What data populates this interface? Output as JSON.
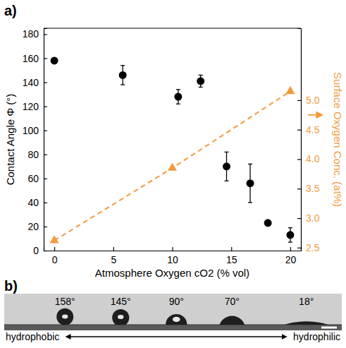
{
  "chart_data": {
    "type": "scatter",
    "x_label": "Atmosphere Oxygen cO2 (% vol)",
    "y_label": "Contact Angle Φ (°)",
    "y2_label": "Surface Oxygen Conc. (at%)",
    "xlim": [
      -0.9,
      20.9
    ],
    "xticks": [
      0,
      5,
      10,
      15,
      20
    ],
    "ylim": [
      0,
      185
    ],
    "yticks": [
      0,
      20,
      40,
      60,
      80,
      100,
      120,
      140,
      160,
      180
    ],
    "y2lim": [
      2.45,
      6.22
    ],
    "y2ticks": [
      {
        "value": 2.5,
        "label": "2.5"
      },
      {
        "value": 3,
        "label": "3.0"
      },
      {
        "value": 3.5,
        "label": "3.5"
      },
      {
        "value": 4,
        "label": "4.0"
      },
      {
        "value": 4.5,
        "label": "4.5"
      },
      {
        "value": 5,
        "label": "5.0"
      }
    ],
    "series": [
      {
        "type": "scatter",
        "color": "#000000",
        "marker": "circle",
        "x": [
          0,
          5.8,
          10.5,
          12.4,
          14.6,
          16.6,
          18.1,
          20
        ],
        "values": [
          158,
          146,
          128,
          141,
          70,
          56,
          23,
          13
        ],
        "error": [
          2,
          8,
          6,
          5,
          12,
          16,
          2,
          6
        ]
      },
      {
        "type": "line",
        "axis": "y2",
        "color": "#f39a3c",
        "line_style": "dashed",
        "marker": "triangle",
        "x": [
          0,
          10,
          20
        ],
        "values": [
          2.62,
          3.85,
          5.15
        ]
      }
    ]
  },
  "figure": {
    "panel_labels": [
      "a)",
      "b)"
    ],
    "droplets": [
      {
        "angle": 158,
        "label": "158°"
      },
      {
        "angle": 145,
        "label": "145°"
      },
      {
        "angle": 90,
        "label": "90°"
      },
      {
        "angle": 70,
        "label": "70°"
      },
      {
        "angle": 18,
        "label": "18°"
      }
    ],
    "left_label": "hydrophobic",
    "right_label": "hydrophilic"
  }
}
